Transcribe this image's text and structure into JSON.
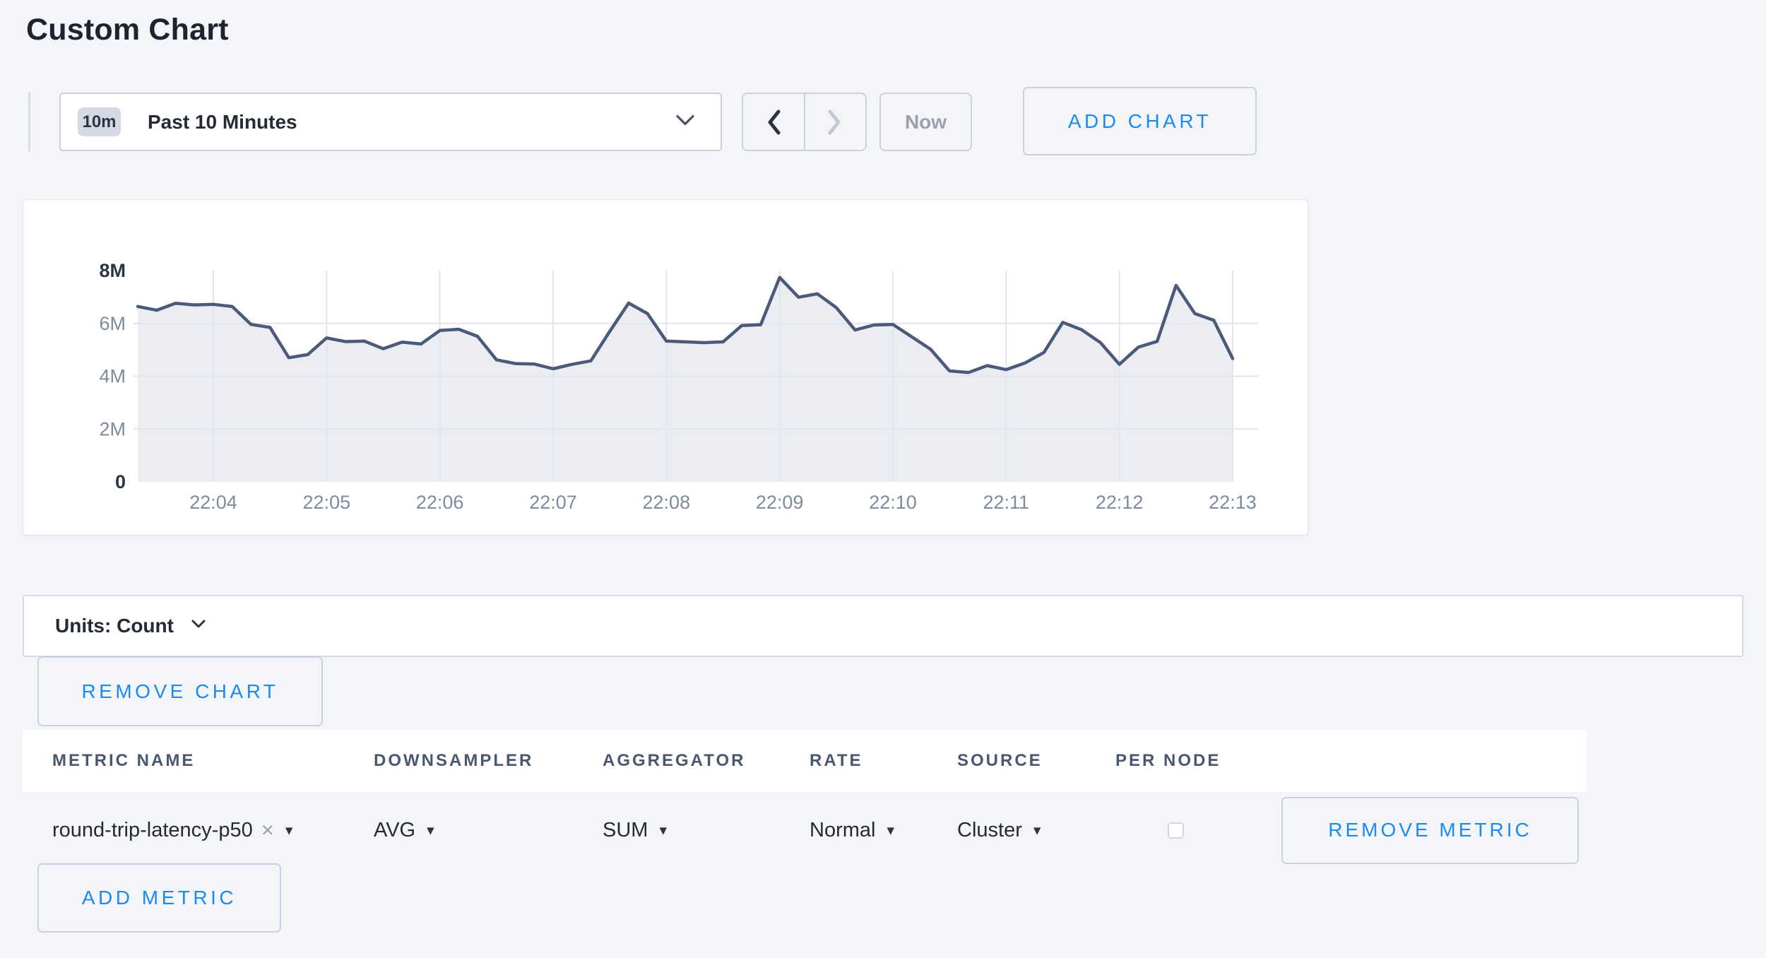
{
  "page": {
    "title": "Custom Chart"
  },
  "toolbar": {
    "time_window_badge": "10m",
    "time_window_label": "Past 10 Minutes",
    "prev_label": "previous time window",
    "next_label": "next time window",
    "now_label": "Now",
    "add_chart_label": "ADD CHART"
  },
  "chart_data": {
    "type": "area",
    "title": "",
    "xlabel": "",
    "ylabel": "",
    "unit": "Count",
    "ylim": [
      0,
      8000000
    ],
    "grid": true,
    "legend": "none",
    "y_ticks": [
      {
        "value": 0,
        "label": "0",
        "strong": true
      },
      {
        "value": 2,
        "label": "2M",
        "strong": false
      },
      {
        "value": 4,
        "label": "4M",
        "strong": false
      },
      {
        "value": 6,
        "label": "6M",
        "strong": false
      },
      {
        "value": 8,
        "label": "8M",
        "strong": true
      }
    ],
    "x_ticks": [
      "22:04",
      "22:05",
      "22:06",
      "22:07",
      "22:08",
      "22:09",
      "22:10",
      "22:11",
      "22:12",
      "22:13"
    ],
    "start_time": "22:03:20",
    "end_time": "22:13:00",
    "interval_seconds": 10,
    "start_offset_seconds_before_first_tick": 40,
    "series": [
      {
        "name": "round-trip-latency-p50",
        "values_millions": [
          6.64,
          6.5,
          6.76,
          6.7,
          6.72,
          6.64,
          5.96,
          5.85,
          4.7,
          4.82,
          5.45,
          5.31,
          5.33,
          5.04,
          5.29,
          5.22,
          5.73,
          5.78,
          5.51,
          4.62,
          4.48,
          4.46,
          4.28,
          4.45,
          4.58,
          5.7,
          6.77,
          6.37,
          5.33,
          5.3,
          5.27,
          5.3,
          5.92,
          5.95,
          7.74,
          6.99,
          7.12,
          6.6,
          5.75,
          5.94,
          5.96,
          5.49,
          5.02,
          4.2,
          4.14,
          4.4,
          4.25,
          4.5,
          4.9,
          6.04,
          5.76,
          5.27,
          4.45,
          5.1,
          5.32,
          7.44,
          6.37,
          6.12,
          4.67
        ]
      }
    ],
    "colors": {
      "line": "#4a5a78",
      "fill": "#ebedf3",
      "grid": "#e1e5ee",
      "tick_text": "#7e8b9d",
      "tick_text_strong": "#2b3546"
    }
  },
  "units_bar": {
    "label": "Units: Count"
  },
  "chart_actions": {
    "remove_chart_label": "REMOVE CHART"
  },
  "metrics_table": {
    "columns": [
      "METRIC NAME",
      "DOWNSAMPLER",
      "AGGREGATOR",
      "RATE",
      "SOURCE",
      "PER NODE"
    ],
    "rows": [
      {
        "metric_name": "round-trip-latency-p50",
        "remove_icon": "×",
        "downsampler": "AVG",
        "aggregator": "SUM",
        "rate": "Normal",
        "source": "Cluster",
        "per_node_checked": false,
        "remove_label": "REMOVE METRIC"
      }
    ],
    "add_metric_label": "ADD METRIC"
  },
  "colors": {
    "accent_blue": "#1b8af3",
    "dark_text": "#242b36",
    "header_slate": "#49586f",
    "muted_text": "#9aa1ae",
    "page_bg": "#f4f5f9"
  }
}
